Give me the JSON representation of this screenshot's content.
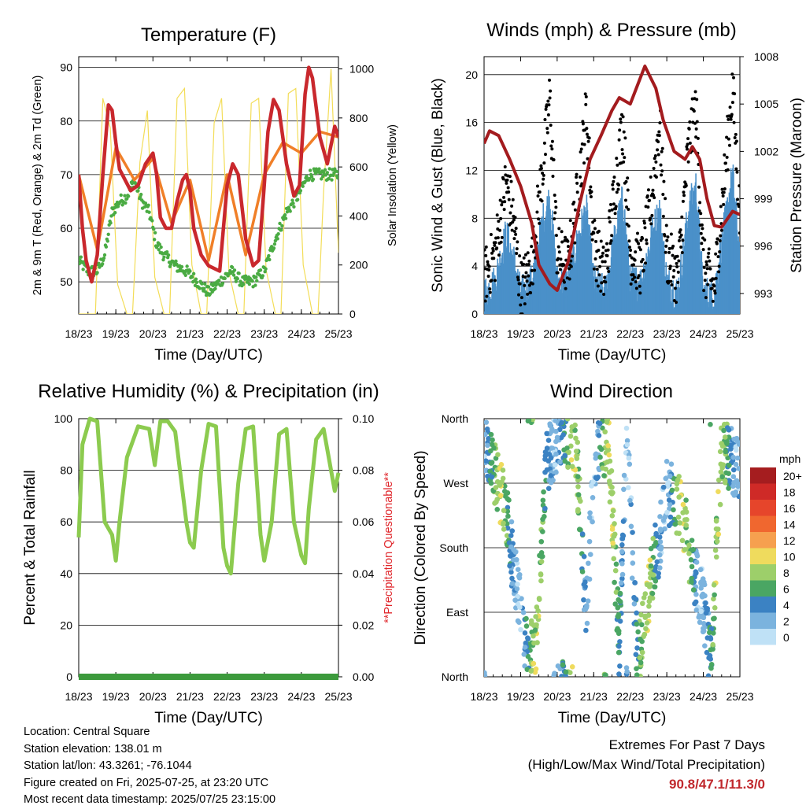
{
  "chart_data": [
    {
      "type": "line",
      "title": "Temperature (F)",
      "xlabel": "Time (Day/UTC)",
      "ylabel": "2m & 9m T (Red, Orange) & 2m Td (Green)",
      "y2label": "Solar Insolation (Yellow)",
      "x_ticks": [
        "18/23",
        "19/23",
        "20/23",
        "21/23",
        "22/23",
        "23/23",
        "24/23",
        "25/23"
      ],
      "ylim": [
        44,
        92
      ],
      "y_ticks": [
        50,
        60,
        70,
        80,
        90
      ],
      "y2lim": [
        0,
        1050
      ],
      "y2_ticks": [
        0,
        200,
        400,
        600,
        800,
        1000
      ],
      "series": [
        {
          "name": "2m T",
          "color": "#c9282d",
          "x": [
            0,
            0.1,
            0.2,
            0.35,
            0.5,
            0.65,
            0.8,
            0.9,
            1.0,
            1.1,
            1.25,
            1.4,
            1.6,
            1.8,
            2.0,
            2.1,
            2.2,
            2.35,
            2.5,
            2.65,
            2.8,
            2.9,
            3.0,
            3.1,
            3.3,
            3.5,
            3.8,
            4.0,
            4.15,
            4.3,
            4.5,
            4.7,
            4.85,
            5.0,
            5.1,
            5.25,
            5.4,
            5.6,
            5.8,
            5.95,
            6.1,
            6.2,
            6.3,
            6.5,
            6.7,
            6.9,
            7.0
          ],
          "y": [
            70,
            60,
            54,
            50,
            55,
            70,
            83,
            82,
            76,
            71,
            69,
            67,
            68,
            72,
            74,
            70,
            62,
            60,
            60,
            65,
            69,
            70,
            67,
            60,
            55,
            53,
            52,
            68,
            72,
            70,
            58,
            53,
            54,
            68,
            78,
            84,
            82,
            72,
            66,
            68,
            85,
            90,
            88,
            77,
            72,
            79,
            77
          ]
        },
        {
          "name": "9m T",
          "color": "#f07f28",
          "x": [
            0,
            0.5,
            1.0,
            1.5,
            2.0,
            2.5,
            3.0,
            3.5,
            4.0,
            4.5,
            5.0,
            5.5,
            6.0,
            6.5,
            7.0
          ],
          "y": [
            70,
            56,
            75,
            69,
            73,
            61,
            69,
            54,
            70,
            55,
            70,
            76,
            74,
            78,
            77
          ]
        },
        {
          "name": "2m Td",
          "color": "#4aab43",
          "x": [
            0,
            0.25,
            0.5,
            0.7,
            0.9,
            1.1,
            1.3,
            1.5,
            1.7,
            1.9,
            2.1,
            2.3,
            2.6,
            2.9,
            3.2,
            3.5,
            3.8,
            4.1,
            4.4,
            4.7,
            5.0,
            5.3,
            5.6,
            5.9,
            6.2,
            6.5,
            6.8,
            7.0
          ],
          "y": [
            54,
            52,
            52,
            55,
            63,
            65,
            66,
            69,
            65,
            63,
            57,
            55,
            53,
            52,
            50,
            48,
            50,
            52,
            50,
            50,
            52,
            58,
            63,
            66,
            70,
            70,
            70,
            70
          ]
        },
        {
          "name": "Solar Insolation",
          "color": "#f3dd58",
          "axis": "right",
          "x": [
            0,
            0.45,
            0.65,
            0.85,
            1.05,
            1.3,
            1.45,
            1.65,
            1.85,
            2.05,
            2.3,
            2.45,
            2.65,
            2.85,
            3.05,
            3.3,
            3.45,
            3.65,
            3.85,
            4.05,
            4.3,
            4.45,
            4.65,
            4.85,
            5.05,
            5.3,
            5.45,
            5.65,
            5.85,
            6.05,
            6.3,
            6.45,
            6.6,
            6.8,
            7.0
          ],
          "y": [
            0,
            0,
            880,
            760,
            120,
            0,
            0,
            620,
            830,
            150,
            0,
            0,
            880,
            920,
            200,
            0,
            0,
            780,
            880,
            170,
            0,
            0,
            860,
            880,
            180,
            0,
            0,
            900,
            920,
            200,
            0,
            0,
            500,
            1000,
            250
          ]
        }
      ]
    },
    {
      "type": "scatter",
      "title": "Winds (mph) & Pressure (mb)",
      "xlabel": "Time (Day/UTC)",
      "ylabel": "Sonic Wind & Gust (Blue, Black)",
      "y2label": "Station Pressure (Maroon)",
      "x_ticks": [
        "18/23",
        "19/23",
        "20/23",
        "21/23",
        "22/23",
        "23/23",
        "24/23",
        "25/23"
      ],
      "ylim": [
        0,
        21.5
      ],
      "y_ticks": [
        0,
        4,
        8,
        12,
        16,
        20
      ],
      "y2lim": [
        991.7,
        1008
      ],
      "y2_ticks": [
        993,
        996,
        999,
        1002,
        1005,
        1008
      ],
      "series": [
        {
          "name": "Gust",
          "color": "#000000",
          "x": [
            0,
            0.3,
            0.6,
            0.8,
            1.0,
            1.3,
            1.6,
            1.8,
            2.0,
            2.3,
            2.6,
            2.8,
            3.0,
            3.3,
            3.6,
            3.8,
            4.0,
            4.3,
            4.6,
            4.8,
            5.0,
            5.3,
            5.6,
            5.8,
            6.0,
            6.3,
            6.6,
            6.8,
            7.0
          ],
          "y": [
            3,
            5,
            11,
            8,
            2,
            4,
            12,
            18,
            5,
            4,
            11,
            17,
            6,
            3,
            11,
            16,
            5,
            4,
            10,
            16,
            5,
            3,
            14,
            17,
            4,
            2,
            12,
            19,
            8
          ]
        },
        {
          "name": "Sonic Wind",
          "color": "#4a90c9",
          "x": [
            0,
            0.3,
            0.6,
            0.8,
            1.0,
            1.3,
            1.6,
            1.8,
            2.0,
            2.3,
            2.6,
            2.8,
            3.0,
            3.3,
            3.6,
            3.8,
            4.0,
            4.3,
            4.6,
            4.8,
            5.0,
            5.3,
            5.6,
            5.8,
            6.0,
            6.3,
            6.6,
            6.8,
            7.0
          ],
          "y": [
            1,
            2,
            6,
            4,
            1,
            2,
            7,
            9,
            2,
            2,
            6,
            8,
            2,
            1,
            6,
            9,
            2,
            2,
            6,
            8,
            2,
            1,
            8,
            10,
            1,
            1,
            7,
            11,
            4
          ]
        },
        {
          "name": "Station Pressure",
          "color": "#a31b1e",
          "axis": "right",
          "x": [
            0,
            0.15,
            0.4,
            0.7,
            1.0,
            1.3,
            1.5,
            1.8,
            2.0,
            2.3,
            2.6,
            2.9,
            3.2,
            3.5,
            3.7,
            4.0,
            4.2,
            4.4,
            4.7,
            4.9,
            5.2,
            5.5,
            5.7,
            5.9,
            6.1,
            6.3,
            6.5,
            6.8,
            7.0
          ],
          "y": [
            1002.5,
            1003.3,
            1003,
            1001.5,
            999.8,
            997.5,
            994.8,
            993.6,
            993.2,
            995,
            998.5,
            1001.5,
            1003,
            1004.6,
            1005.4,
            1005,
            1006.2,
            1007.4,
            1006,
            1004,
            1002,
            1001.5,
            1002.3,
            1001.5,
            999,
            997.3,
            997.2,
            998.2,
            998
          ]
        }
      ]
    },
    {
      "type": "line",
      "title": "Relative Humidity (%) & Precipitation (in)",
      "xlabel": "Time (Day/UTC)",
      "ylabel": "Percent & Total Rainfall",
      "y2label": "**Precipitation Questionable**",
      "x_ticks": [
        "18/23",
        "19/23",
        "20/23",
        "21/23",
        "22/23",
        "23/23",
        "24/23",
        "25/23"
      ],
      "ylim": [
        0,
        100
      ],
      "y_ticks": [
        0,
        20,
        40,
        60,
        80,
        100
      ],
      "y2lim": [
        0,
        0.1
      ],
      "y2_ticks": [
        "0.00",
        "0.02",
        "0.04",
        "0.06",
        "0.08",
        "0.10"
      ],
      "series": [
        {
          "name": "Relative Humidity",
          "color": "#8ccb4f",
          "x": [
            0,
            0.1,
            0.3,
            0.5,
            0.7,
            0.9,
            1.0,
            1.1,
            1.3,
            1.6,
            1.9,
            2.05,
            2.2,
            2.4,
            2.6,
            2.9,
            3.0,
            3.1,
            3.3,
            3.5,
            3.7,
            3.9,
            4.0,
            4.1,
            4.3,
            4.5,
            4.7,
            4.9,
            5.0,
            5.2,
            5.4,
            5.6,
            5.8,
            6.0,
            6.1,
            6.2,
            6.4,
            6.6,
            6.8,
            6.9,
            7.0
          ],
          "y": [
            54,
            90,
            100,
            99,
            60,
            55,
            45,
            60,
            85,
            97,
            96,
            82,
            99,
            99,
            95,
            60,
            52,
            50,
            80,
            98,
            97,
            50,
            43,
            40,
            75,
            96,
            97,
            55,
            45,
            60,
            94,
            96,
            60,
            47,
            44,
            65,
            92,
            96,
            80,
            72,
            79
          ]
        },
        {
          "name": "Total Precipitation",
          "color": "#3c9a3c",
          "axis": "right",
          "x": [
            0,
            7.0
          ],
          "y": [
            0,
            0
          ]
        }
      ]
    },
    {
      "type": "scatter",
      "title": "Wind Direction",
      "xlabel": "Time (Day/UTC)",
      "ylabel": "Direction (Colored By Speed)",
      "x_ticks": [
        "18/23",
        "19/23",
        "20/23",
        "21/23",
        "22/23",
        "23/23",
        "24/23",
        "25/23"
      ],
      "y_ticks": [
        "North",
        "East",
        "South",
        "West",
        "North"
      ],
      "ylim": [
        0,
        360
      ],
      "legend": {
        "title": "mph",
        "labels": [
          "20+",
          "18",
          "16",
          "14",
          "12",
          "10",
          "8",
          "6",
          "4",
          "2",
          "0"
        ],
        "colors": [
          "#a51d1f",
          "#cf2a27",
          "#e6452b",
          "#f0672f",
          "#f6a04f",
          "#efdb5d",
          "#9dcf6a",
          "#4aa663",
          "#3b82c3",
          "#7bb3de",
          "#bfe1f6"
        ]
      },
      "series": [
        {
          "name": "Direction",
          "x": [
            0,
            0.2,
            0.5,
            0.7,
            0.8,
            1.0,
            1.1,
            1.4,
            1.7,
            2.0,
            2.2,
            2.5,
            2.8,
            3.0,
            3.4,
            3.7,
            3.9,
            4.2,
            4.6,
            4.8,
            5.0,
            5.3,
            5.5,
            5.7,
            6.0,
            6.2,
            6.5,
            6.8,
            7.0
          ],
          "y": [
            330,
            300,
            250,
            200,
            150,
            100,
            40,
            30,
            300,
            330,
            340,
            330,
            80,
            300,
            330,
            40,
            340,
            20,
            150,
            190,
            260,
            240,
            210,
            150,
            100,
            20,
            320,
            300,
            290
          ]
        }
      ]
    }
  ],
  "footer": {
    "location": "Location: Central Square",
    "elevation": "Station elevation: 138.01 m",
    "latlon": "Station lat/lon: 43.3261; -76.1044",
    "created": "Figure created on Fri, 2025-07-25, at 23:20 UTC",
    "recent": "Most recent data timestamp: 2025/07/25 23:15:00",
    "extremes_title": "Extremes For Past 7 Days",
    "extremes_subtitle": "(High/Low/Max Wind/Total Precipitation)",
    "extremes_values": "90.8/47.1/11.3/0"
  }
}
